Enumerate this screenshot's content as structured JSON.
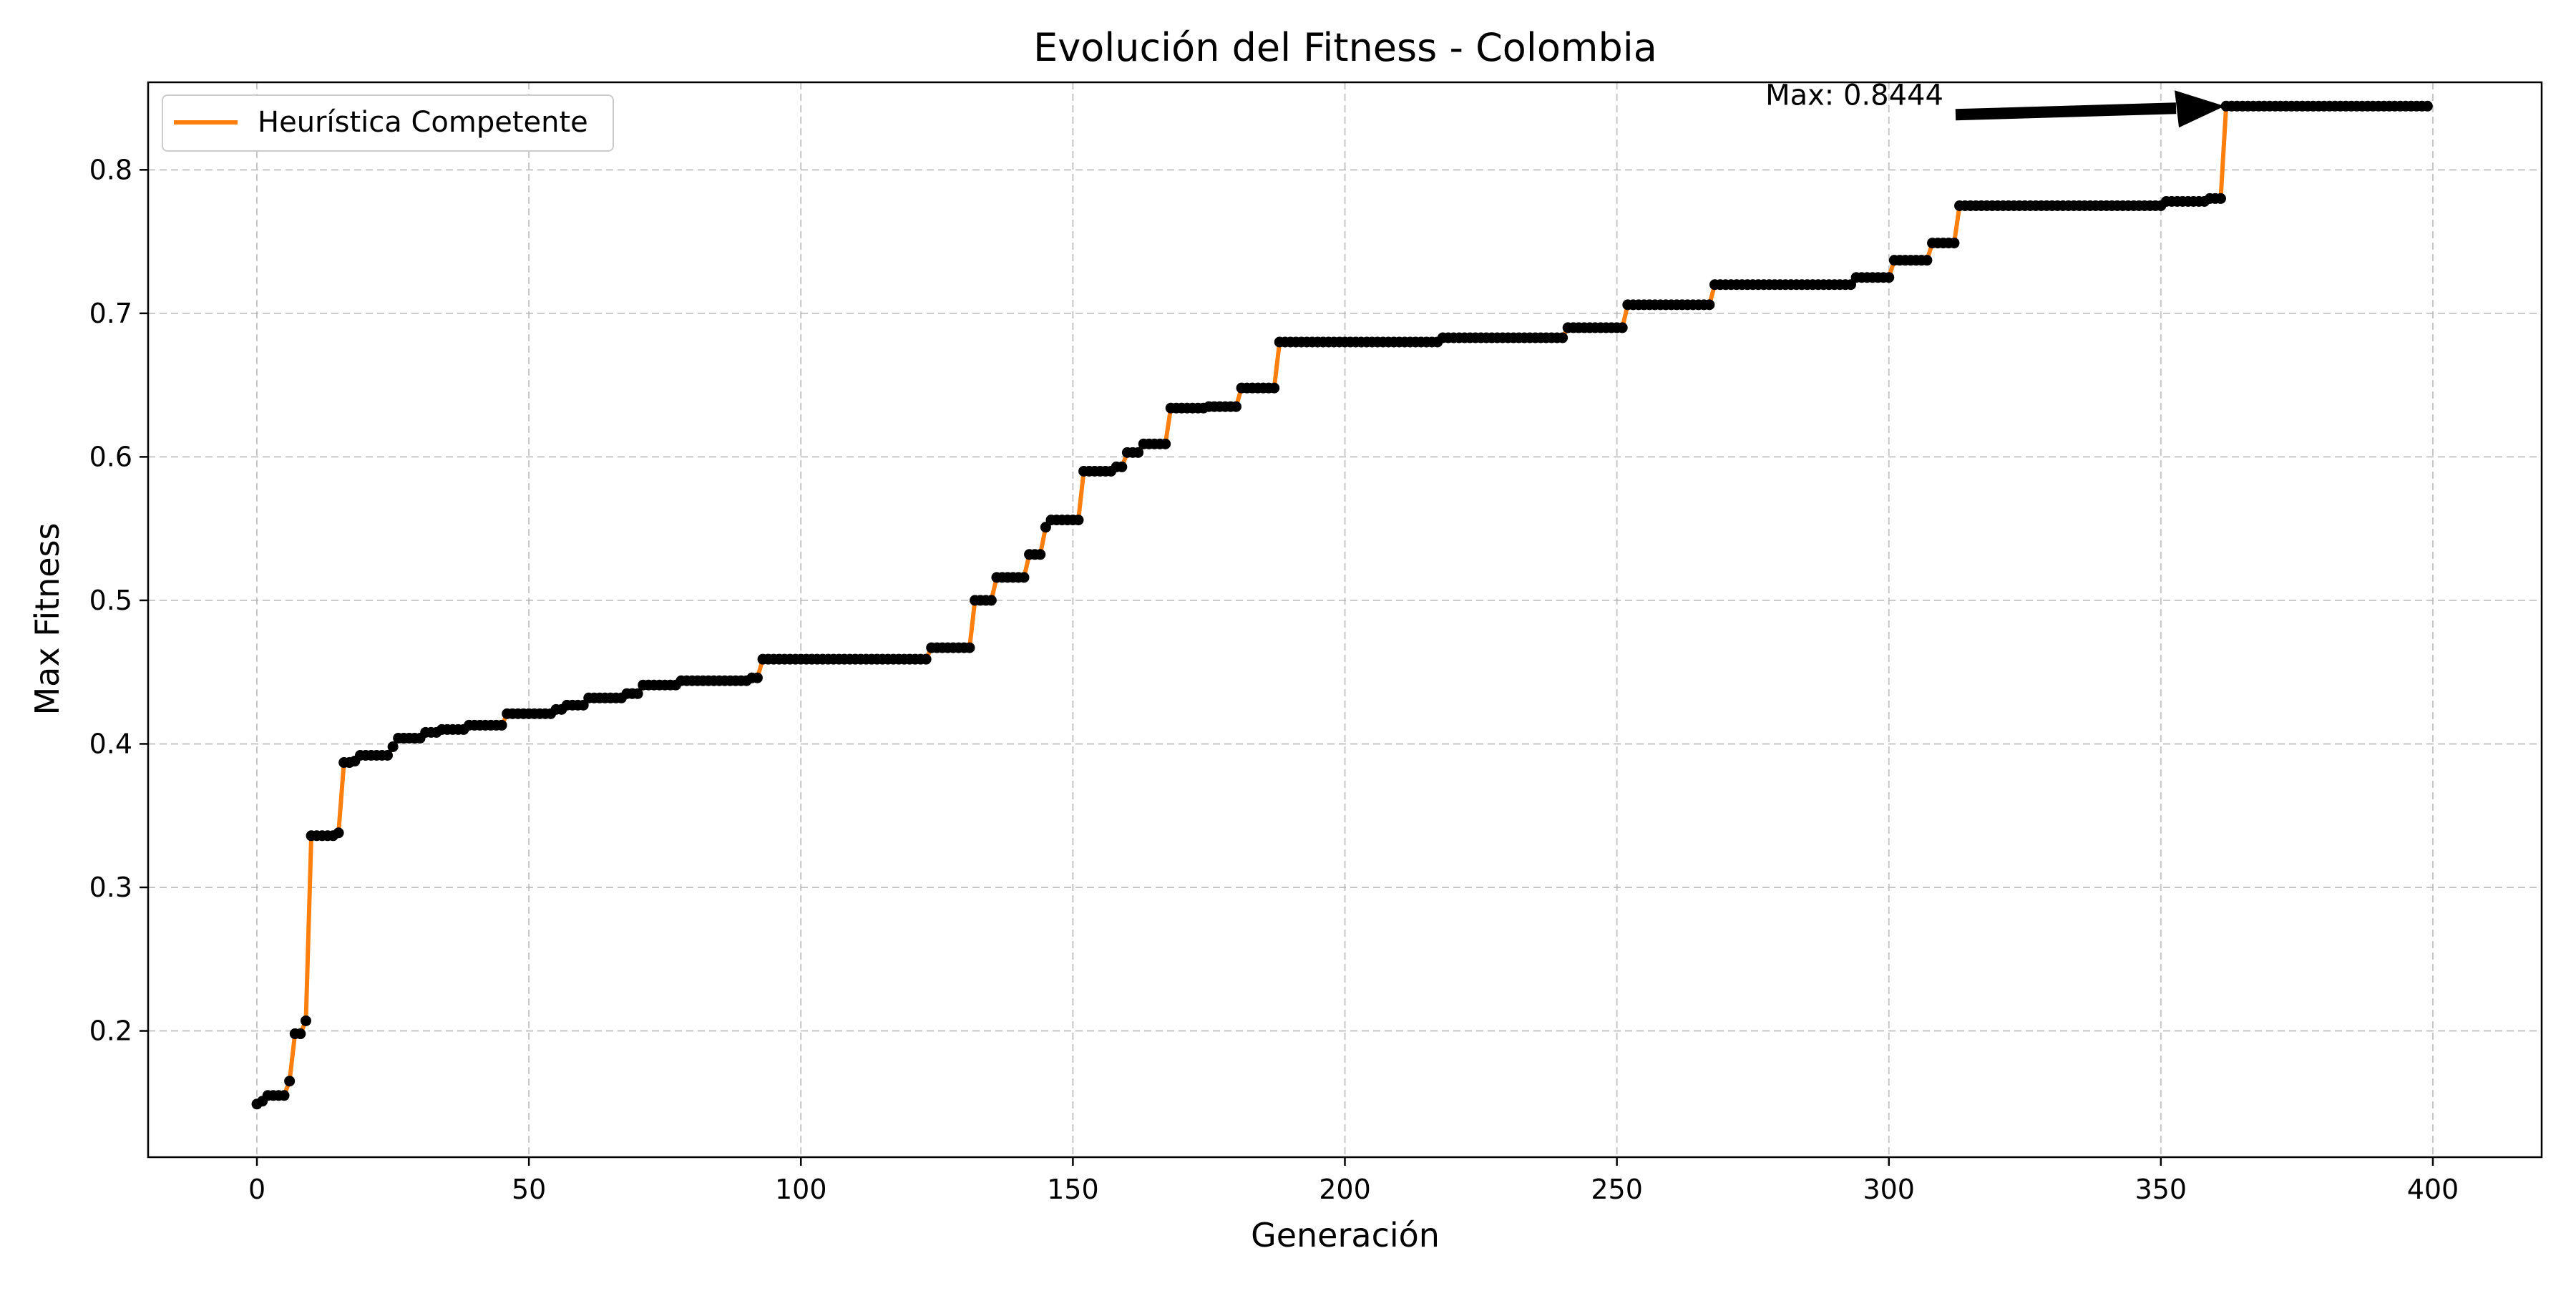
{
  "chart_data": {
    "type": "line",
    "title": "Evolución del Fitness - Colombia",
    "xlabel": "Generación",
    "ylabel": "Max Fitness",
    "xlim": [
      -20,
      420
    ],
    "ylim": [
      0.112,
      0.861
    ],
    "xticks": [
      0,
      50,
      100,
      150,
      200,
      250,
      300,
      350,
      400
    ],
    "yticks": [
      0.2,
      0.3,
      0.4,
      0.5,
      0.6,
      0.7,
      0.8
    ],
    "xtick_labels": [
      "0",
      "50",
      "100",
      "150",
      "200",
      "250",
      "300",
      "350",
      "400"
    ],
    "ytick_labels": [
      "0.2",
      "0.3",
      "0.4",
      "0.5",
      "0.6",
      "0.7",
      "0.8"
    ],
    "grid": true,
    "legend_position": "upper-left",
    "series": [
      {
        "name": "Heurística Competente",
        "color": "#ff7f0e",
        "marker_color": "#000000",
        "x_range": [
          0,
          399
        ],
        "steps": [
          [
            0,
            0.149
          ],
          [
            1,
            0.151
          ],
          [
            2,
            0.155
          ],
          [
            6,
            0.165
          ],
          [
            7,
            0.198
          ],
          [
            9,
            0.207
          ],
          [
            10,
            0.336
          ],
          [
            15,
            0.338
          ],
          [
            16,
            0.387
          ],
          [
            18,
            0.388
          ],
          [
            19,
            0.392
          ],
          [
            25,
            0.398
          ],
          [
            26,
            0.404
          ],
          [
            31,
            0.408
          ],
          [
            34,
            0.41
          ],
          [
            39,
            0.413
          ],
          [
            46,
            0.421
          ],
          [
            55,
            0.424
          ],
          [
            57,
            0.427
          ],
          [
            61,
            0.432
          ],
          [
            68,
            0.435
          ],
          [
            71,
            0.441
          ],
          [
            78,
            0.444
          ],
          [
            91,
            0.446
          ],
          [
            93,
            0.459
          ],
          [
            124,
            0.467
          ],
          [
            132,
            0.5
          ],
          [
            136,
            0.516
          ],
          [
            142,
            0.532
          ],
          [
            145,
            0.551
          ],
          [
            146,
            0.556
          ],
          [
            152,
            0.59
          ],
          [
            158,
            0.593
          ],
          [
            160,
            0.603
          ],
          [
            163,
            0.609
          ],
          [
            168,
            0.634
          ],
          [
            175,
            0.635
          ],
          [
            181,
            0.648
          ],
          [
            188,
            0.68
          ],
          [
            218,
            0.683
          ],
          [
            241,
            0.69
          ],
          [
            252,
            0.706
          ],
          [
            268,
            0.72
          ],
          [
            294,
            0.725
          ],
          [
            301,
            0.737
          ],
          [
            308,
            0.749
          ],
          [
            313,
            0.775
          ],
          [
            351,
            0.778
          ],
          [
            359,
            0.78
          ],
          [
            362,
            0.8444
          ]
        ]
      }
    ],
    "annotations": [
      {
        "text": "Max: 0.8444",
        "x": 362,
        "y": 0.8444,
        "text_x": 312,
        "text_y": 0.8444
      }
    ]
  }
}
